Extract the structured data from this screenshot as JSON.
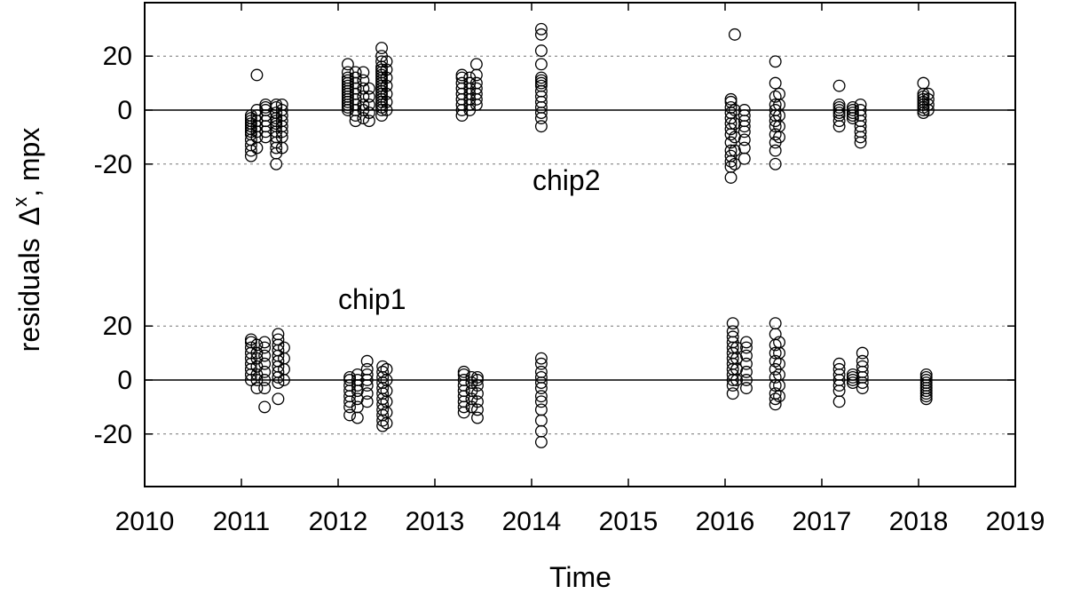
{
  "chart_data": {
    "type": "scatter",
    "xlabel": "Time",
    "ylabel_main": "residuals",
    "ylabel_symbol": "Δ",
    "ylabel_superscript": "x",
    "ylabel_unit": ", mpx",
    "x_ticks": [
      "2010",
      "2011",
      "2012",
      "2013",
      "2014",
      "2015",
      "2016",
      "2017",
      "2018",
      "2019"
    ],
    "xlim": [
      2010,
      2019
    ],
    "grid": "dotted horizontal lines at ±20 in each panel",
    "panels": [
      {
        "name": "chip2",
        "ylim": [
          -32,
          32
        ],
        "y_ticks": [
          "20",
          "0",
          "-20"
        ],
        "clusters": [
          {
            "x": 2011.1,
            "values": [
              -17,
              -15,
              -13,
              -11,
              -9,
              -8,
              -7,
              -6,
              -5,
              -4,
              -3,
              -2
            ]
          },
          {
            "x": 2011.16,
            "values": [
              -14,
              -10,
              -8,
              -6,
              -4,
              -2,
              0,
              13
            ]
          },
          {
            "x": 2011.25,
            "values": [
              -10,
              -8,
              -6,
              -4,
              -2,
              0,
              1,
              2
            ]
          },
          {
            "x": 2011.36,
            "values": [
              -20,
              -16,
              -14,
              -12,
              -10,
              -8,
              -6,
              -5,
              -4,
              -3,
              -1,
              1,
              2
            ]
          },
          {
            "x": 2011.42,
            "values": [
              -14,
              -10,
              -8,
              -6,
              -4,
              -2,
              0,
              2
            ]
          },
          {
            "x": 2012.1,
            "values": [
              0,
              1,
              2,
              3,
              4,
              5,
              6,
              7,
              8,
              9,
              10,
              11,
              12,
              14,
              17
            ]
          },
          {
            "x": 2012.18,
            "values": [
              -4,
              -2,
              0,
              2,
              4,
              6,
              8,
              10,
              12,
              14
            ]
          },
          {
            "x": 2012.26,
            "values": [
              -3,
              0,
              2,
              5,
              8,
              11,
              14
            ]
          },
          {
            "x": 2012.32,
            "values": [
              -4,
              -1,
              2,
              5,
              8
            ]
          },
          {
            "x": 2012.45,
            "values": [
              -2,
              0,
              1,
              2,
              3,
              4,
              5,
              6,
              7,
              8,
              9,
              10,
              11,
              12,
              13,
              14,
              15,
              16,
              18,
              20,
              23
            ]
          },
          {
            "x": 2012.5,
            "values": [
              0,
              3,
              6,
              9,
              12,
              15,
              18
            ]
          },
          {
            "x": 2013.28,
            "values": [
              -2,
              0,
              2,
              4,
              6,
              8,
              10,
              12,
              13
            ]
          },
          {
            "x": 2013.36,
            "values": [
              0,
              2,
              4,
              6,
              8,
              10,
              12
            ]
          },
          {
            "x": 2013.43,
            "values": [
              2,
              4,
              6,
              8,
              10,
              13,
              17
            ]
          },
          {
            "x": 2014.1,
            "values": [
              -6,
              -3,
              -1,
              1,
              3,
              5,
              7,
              9,
              10,
              11,
              12,
              17,
              22,
              28,
              30
            ]
          },
          {
            "x": 2016.06,
            "values": [
              -25,
              -21,
              -19,
              -17,
              -15,
              -12,
              -9,
              -7,
              -5,
              -3,
              -1,
              1,
              3,
              4
            ]
          },
          {
            "x": 2016.1,
            "values": [
              -20,
              -15,
              -10,
              -5,
              0,
              28
            ]
          },
          {
            "x": 2016.2,
            "values": [
              -18,
              -14,
              -11,
              -8,
              -6,
              -4,
              -2,
              0
            ]
          },
          {
            "x": 2016.52,
            "values": [
              -20,
              -15,
              -12,
              -9,
              -6,
              -4,
              -2,
              0,
              2,
              5,
              10,
              18
            ]
          },
          {
            "x": 2016.56,
            "values": [
              -10,
              -6,
              -2,
              2,
              6
            ]
          },
          {
            "x": 2017.18,
            "values": [
              -6,
              -4,
              -2,
              -1,
              0,
              1,
              2,
              9
            ]
          },
          {
            "x": 2017.32,
            "values": [
              -3,
              -2,
              -1,
              0,
              1
            ]
          },
          {
            "x": 2017.4,
            "values": [
              -12,
              -10,
              -8,
              -6,
              -4,
              -2,
              0,
              2
            ]
          },
          {
            "x": 2018.05,
            "values": [
              -1,
              0,
              1,
              2,
              3,
              4,
              5,
              6,
              10
            ]
          },
          {
            "x": 2018.1,
            "values": [
              0,
              2,
              4,
              6
            ]
          }
        ]
      },
      {
        "name": "chip1",
        "ylim": [
          -32,
          32
        ],
        "y_ticks": [
          "20",
          "0",
          "-20"
        ],
        "clusters": [
          {
            "x": 2011.1,
            "values": [
              0,
              2,
              4,
              6,
              8,
              10,
              12,
              14,
              15
            ]
          },
          {
            "x": 2011.16,
            "values": [
              -3,
              0,
              2,
              5,
              8,
              10,
              13
            ]
          },
          {
            "x": 2011.24,
            "values": [
              -10,
              -3,
              0,
              3,
              6,
              9,
              12,
              14
            ]
          },
          {
            "x": 2011.38,
            "values": [
              -7,
              -1,
              1,
              3,
              5,
              7,
              9,
              11,
              13,
              15,
              17
            ]
          },
          {
            "x": 2011.44,
            "values": [
              0,
              4,
              8,
              12
            ]
          },
          {
            "x": 2012.12,
            "values": [
              -13,
              -10,
              -8,
              -6,
              -4,
              -2,
              0,
              1
            ]
          },
          {
            "x": 2012.2,
            "values": [
              -14,
              -10,
              -7,
              -4,
              -2,
              0,
              2
            ]
          },
          {
            "x": 2012.3,
            "values": [
              -8,
              -5,
              -2,
              0,
              2,
              4,
              7
            ]
          },
          {
            "x": 2012.46,
            "values": [
              -17,
              -15,
              -13,
              -11,
              -9,
              -7,
              -5,
              -3,
              -1,
              1,
              3,
              5
            ]
          },
          {
            "x": 2012.5,
            "values": [
              -16,
              -12,
              -8,
              -4,
              0,
              4
            ]
          },
          {
            "x": 2013.3,
            "values": [
              -12,
              -10,
              -8,
              -6,
              -4,
              -2,
              0,
              2,
              3
            ]
          },
          {
            "x": 2013.38,
            "values": [
              -10,
              -7,
              -4,
              -1,
              1
            ]
          },
          {
            "x": 2013.44,
            "values": [
              -14,
              -11,
              -8,
              -5,
              -2,
              0,
              1
            ]
          },
          {
            "x": 2014.1,
            "values": [
              -23,
              -19,
              -15,
              -11,
              -8,
              -6,
              -3,
              -1,
              1,
              3,
              6,
              8
            ]
          },
          {
            "x": 2016.08,
            "values": [
              -5,
              -2,
              0,
              2,
              4,
              6,
              8,
              10,
              12,
              14,
              16,
              18,
              21
            ]
          },
          {
            "x": 2016.12,
            "values": [
              0,
              4,
              8,
              12
            ]
          },
          {
            "x": 2016.22,
            "values": [
              -3,
              0,
              3,
              6,
              9,
              12,
              14
            ]
          },
          {
            "x": 2016.52,
            "values": [
              -9,
              -7,
              -5,
              -2,
              1,
              4,
              7,
              10,
              13,
              17,
              21
            ]
          },
          {
            "x": 2016.56,
            "values": [
              -6,
              -2,
              2,
              6,
              10,
              14
            ]
          },
          {
            "x": 2017.18,
            "values": [
              -8,
              -4,
              -2,
              0,
              2,
              4,
              6
            ]
          },
          {
            "x": 2017.32,
            "values": [
              -1,
              0,
              1,
              2
            ]
          },
          {
            "x": 2017.42,
            "values": [
              -3,
              -1,
              1,
              3,
              5,
              7,
              10
            ]
          },
          {
            "x": 2018.08,
            "values": [
              -7,
              -6,
              -5,
              -4,
              -3,
              -2,
              -1,
              0,
              1,
              2
            ]
          }
        ]
      }
    ]
  }
}
